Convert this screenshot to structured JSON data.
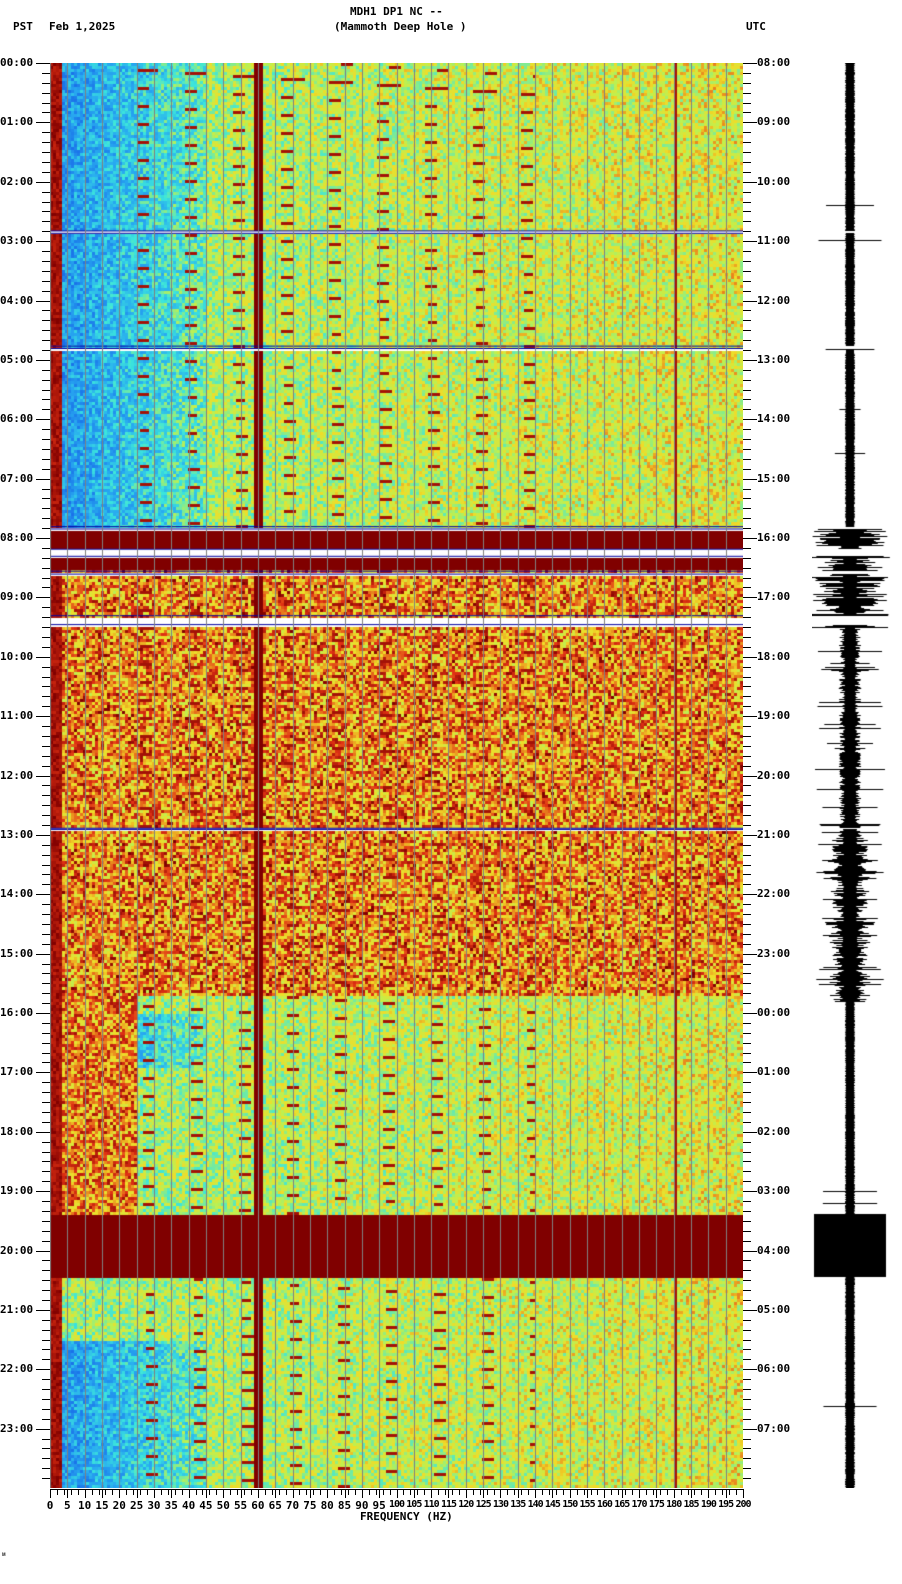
{
  "header": {
    "station": "MDH1 DP1 NC --",
    "location": "(Mammoth Deep Hole )",
    "left_tz": "PST",
    "date": "Feb 1,2025",
    "right_tz": "UTC"
  },
  "footer": {
    "corner_mark": "ᴍ"
  },
  "colors": {
    "low": "#1e78e6",
    "mid_low": "#33e0e0",
    "mid": "#c8f050",
    "mid_high": "#f0e030",
    "high": "#e03010",
    "saturated": "#800000",
    "gridline": "#808080",
    "gap": "#ffffff",
    "gap_edge": "#0000a0"
  },
  "chart_data": {
    "type": "heatmap",
    "title": "MDH1 DP1 NC -- (Mammoth Deep Hole ) spectrogram, Feb 1,2025",
    "xlabel": "FREQUENCY (HZ)",
    "ylabel_left": "PST",
    "ylabel_right": "UTC",
    "xlim": [
      0,
      200
    ],
    "x_ticks": [
      "0",
      "5",
      "10",
      "15",
      "20",
      "25",
      "30",
      "35",
      "40",
      "45",
      "50",
      "55",
      "60",
      "65",
      "70",
      "75",
      "80",
      "85",
      "90",
      "95",
      "100",
      "105",
      "110",
      "115",
      "120",
      "125",
      "130",
      "135",
      "140",
      "145",
      "150",
      "155",
      "160",
      "165",
      "170",
      "175",
      "180",
      "185",
      "190",
      "195",
      "200"
    ],
    "y_ticks_pst": [
      "00:00",
      "01:00",
      "02:00",
      "03:00",
      "04:00",
      "05:00",
      "06:00",
      "07:00",
      "08:00",
      "09:00",
      "10:00",
      "11:00",
      "12:00",
      "13:00",
      "14:00",
      "15:00",
      "16:00",
      "17:00",
      "18:00",
      "19:00",
      "20:00",
      "21:00",
      "22:00",
      "23:00"
    ],
    "y_ticks_utc": [
      "08:00",
      "09:00",
      "10:00",
      "11:00",
      "12:00",
      "13:00",
      "14:00",
      "15:00",
      "16:00",
      "17:00",
      "18:00",
      "19:00",
      "20:00",
      "21:00",
      "22:00",
      "23:00",
      "00:00",
      "01:00",
      "02:00",
      "03:00",
      "04:00",
      "05:00",
      "06:00",
      "07:00"
    ],
    "grid": true,
    "persistent_lines_hz": [
      60,
      180
    ],
    "data_gaps_pst_hours": [
      [
        2.82,
        2.86
      ],
      [
        4.76,
        4.8
      ],
      [
        7.8,
        7.84
      ],
      [
        8.18,
        8.3
      ],
      [
        8.55,
        8.6
      ],
      [
        9.3,
        9.45
      ],
      [
        12.88,
        12.9
      ]
    ],
    "saturated_bands_pst_hours": [
      [
        7.85,
        8.15
      ],
      [
        8.3,
        8.5
      ],
      [
        19.37,
        20.43
      ]
    ],
    "noisy_period_pst_hours": [
      7.8,
      15.7
    ],
    "quiet_low_freq_hours": [
      [
        0,
        7.8
      ],
      [
        9.5,
        13.9
      ],
      [
        16.0,
        16.9
      ],
      [
        21.5,
        24
      ]
    ],
    "series": [
      {
        "name": "seismogram_trace",
        "description": "helicorder trace at right; large amplitude 07:50-09:30 PST, 13:00-15:45 PST moderate, saturated 19:22-20:26 PST"
      }
    ]
  }
}
